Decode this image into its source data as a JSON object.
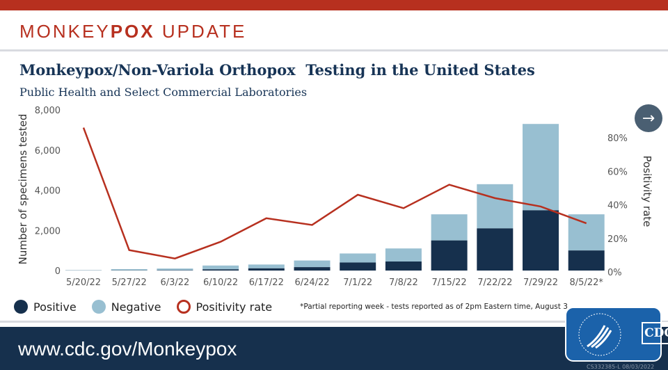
{
  "header": {
    "brand_regular_1": "MONKEY",
    "brand_bold": "POX",
    "brand_regular_2": " UPDATE"
  },
  "chart_data": {
    "type": "bar",
    "title": "Monkeypox/Non-Variola Orthopox  Testing in the United States",
    "subtitle": "Public Health and Select Commercial Laboratories",
    "ylabel": "Number of specimens tested",
    "y2label": "Positivity rate",
    "categories": [
      "5/20/22",
      "5/27/22",
      "6/3/22",
      "6/10/22",
      "6/17/22",
      "6/24/22",
      "7/1/22",
      "7/8/22",
      "7/15/22",
      "7/22/22",
      "7/29/22",
      "8/5/22*"
    ],
    "yticks": [
      "0",
      "2,000",
      "4,000",
      "6,000",
      "8,000"
    ],
    "y2ticks": [
      "0%",
      "20%",
      "40%",
      "60%",
      "80%"
    ],
    "ylim": [
      0,
      8000
    ],
    "y2lim": [
      0,
      80
    ],
    "series": [
      {
        "name": "Positive",
        "kind": "stacked-bar",
        "color": "#16304d",
        "values": [
          5,
          10,
          15,
          60,
          110,
          170,
          400,
          450,
          1500,
          2100,
          3000,
          1000
        ]
      },
      {
        "name": "Negative",
        "kind": "stacked-bar",
        "color": "#98bfd1",
        "values": [
          15,
          60,
          85,
          190,
          190,
          330,
          450,
          650,
          1300,
          2200,
          4300,
          1800
        ]
      },
      {
        "name": "Positivity rate",
        "kind": "line",
        "axis": "right",
        "color": "#b7301f",
        "values": [
          86,
          13,
          8,
          18,
          32,
          28,
          46,
          38,
          52,
          44,
          39,
          29
        ]
      }
    ],
    "footnote": "*Partial reporting week - tests reported as of 2pm Eastern time, August 3",
    "grid": false,
    "legend": "bottom-left"
  },
  "footer": {
    "url": "www.cdc.gov/Monkeypox",
    "logo_text": "CDC",
    "code": "CS332385-L 08/03/2022"
  },
  "nav": {
    "next_icon": "arrow-right-icon"
  }
}
